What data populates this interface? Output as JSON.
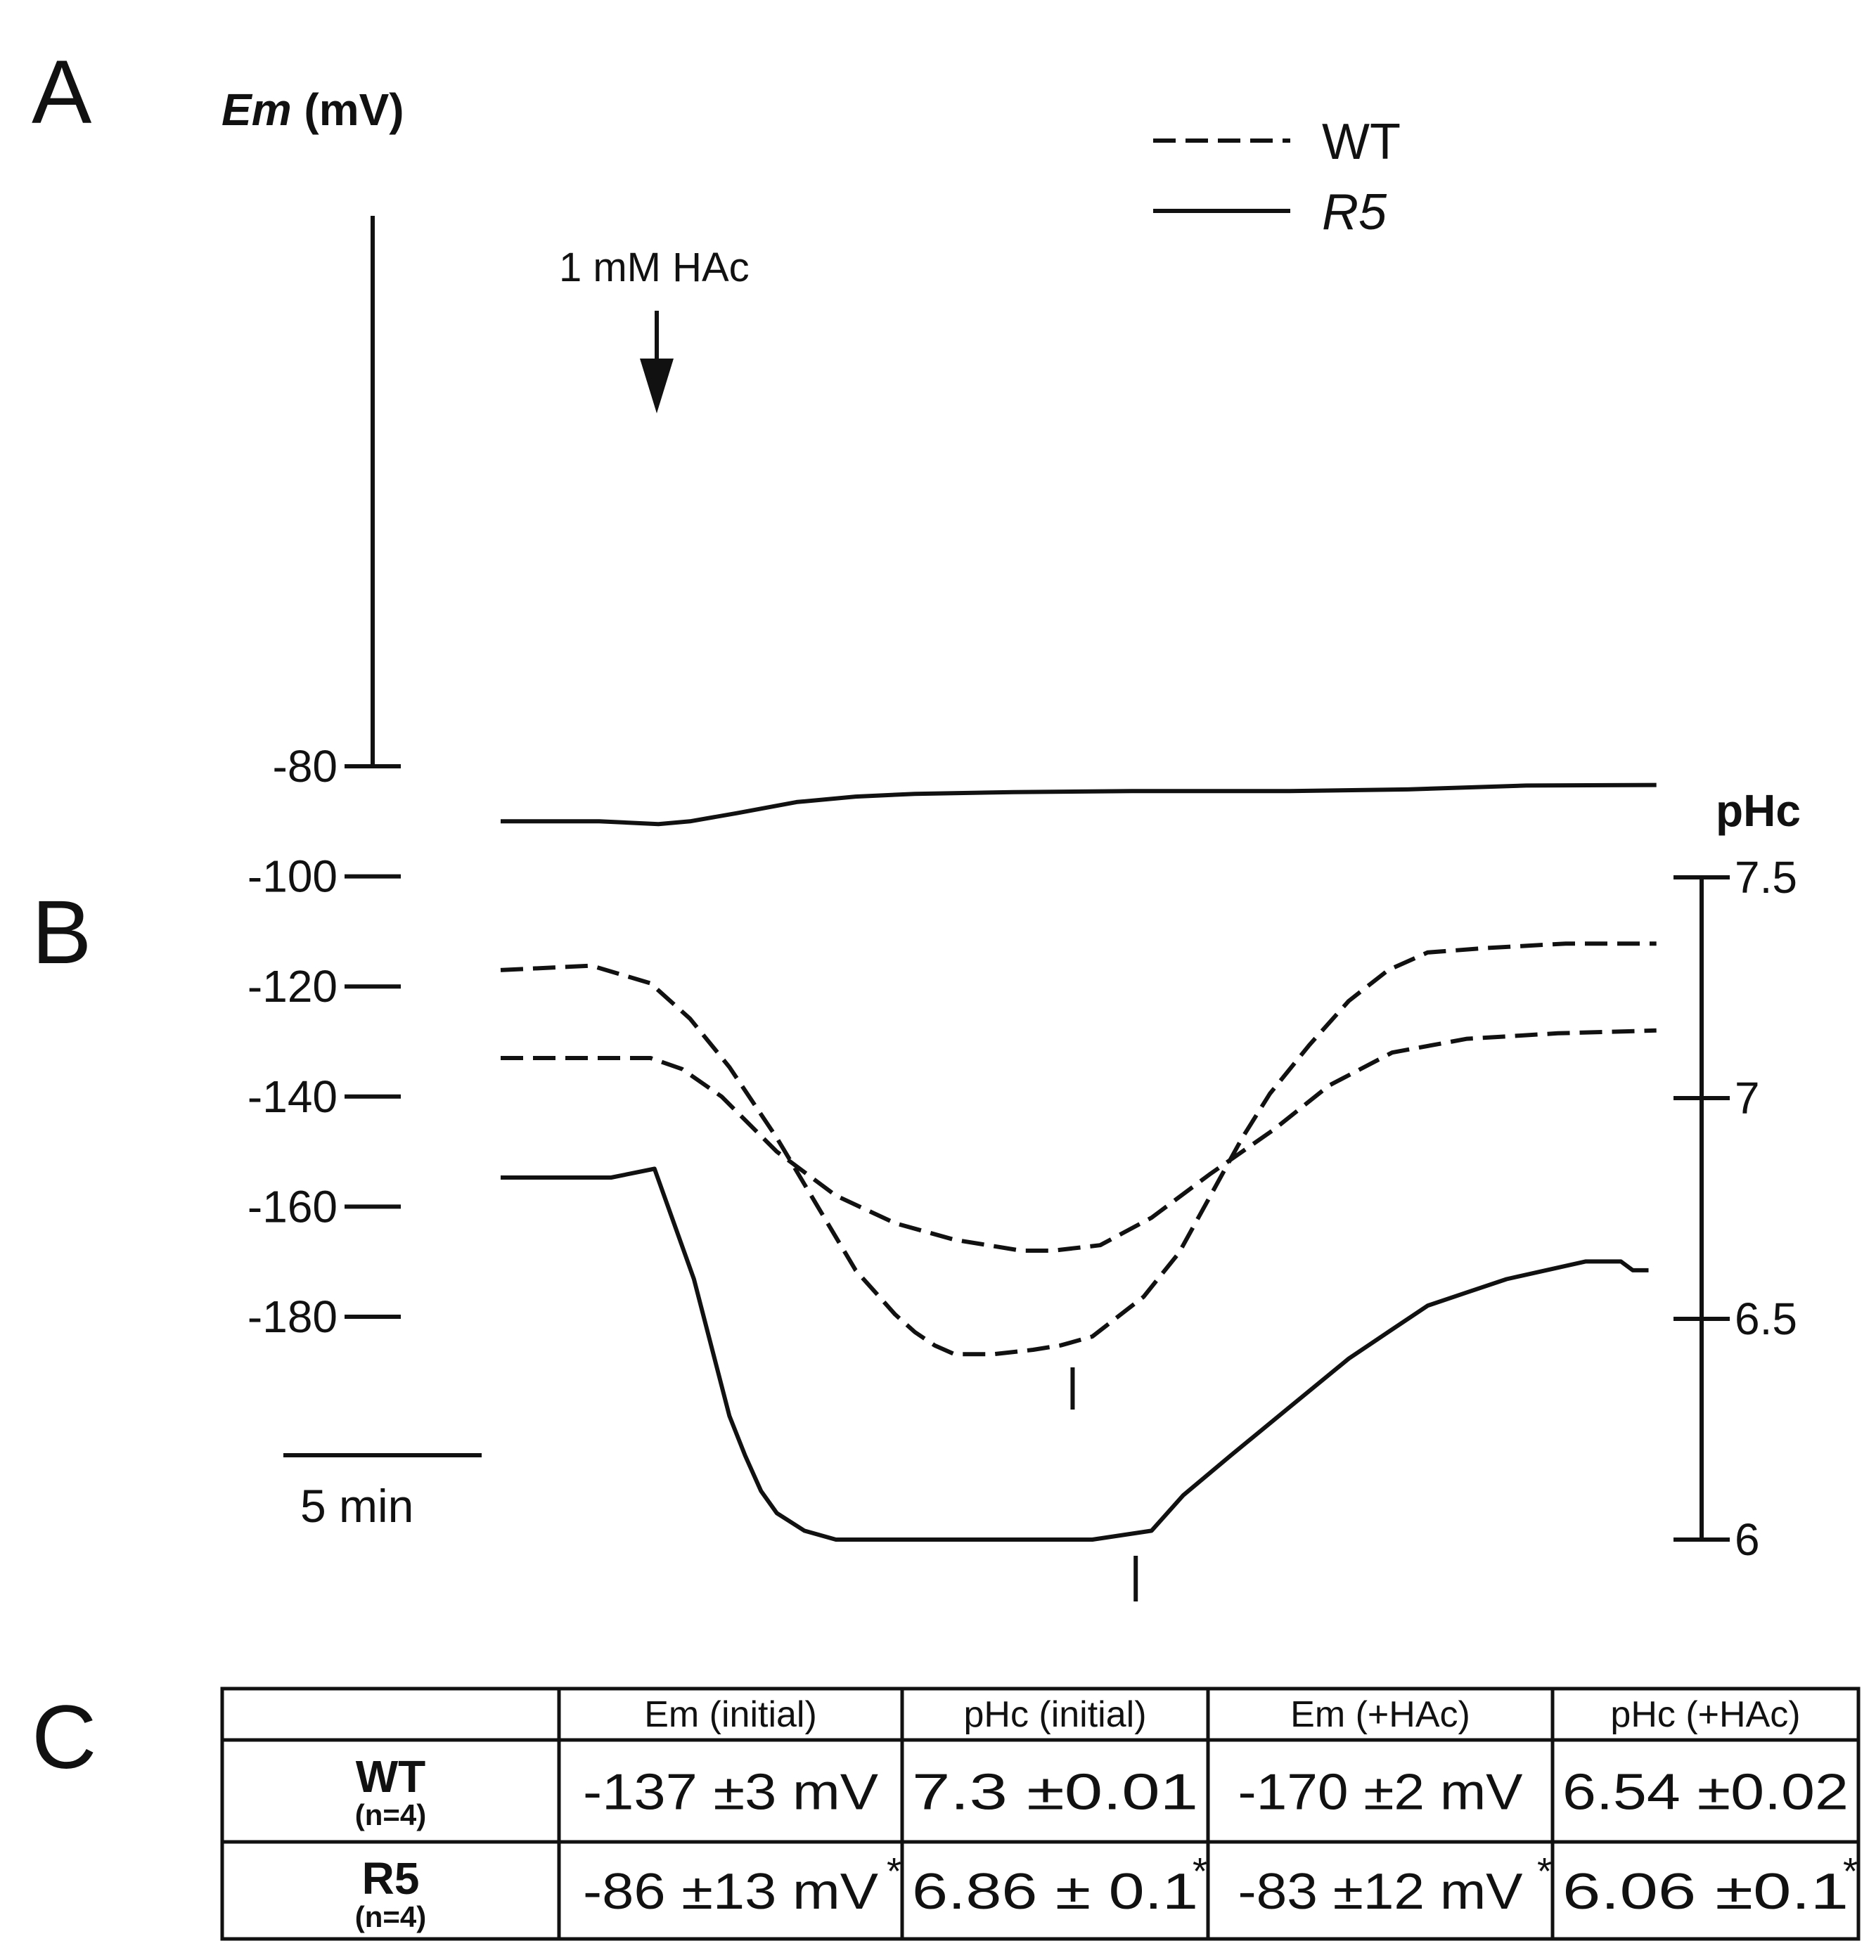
{
  "panels": {
    "a": "A",
    "b": "B",
    "c": "C"
  },
  "legend": {
    "wt": "WT",
    "r5": "R5"
  },
  "annotation": "1 mM HAc",
  "scale_bar": "5 min",
  "colors": {
    "line": "#111111",
    "background": "#ffffff"
  },
  "chart_data": [
    {
      "type": "line",
      "panel": "A",
      "ylabel_italic": "Em",
      "ylabel_unit": " (mV)",
      "ylim": [
        -80,
        -180
      ],
      "yticks": [
        "-180",
        "-160",
        "-140",
        "-120",
        "-100",
        "-80"
      ],
      "x_unit": "min",
      "series": [
        {
          "name": "WT",
          "style": "dashed",
          "x": [
            0,
            2.0,
            3.8,
            4.6,
            5.6,
            7.0,
            8.5,
            10.0,
            11.5,
            13.2,
            14.0,
            15.2,
            16.5,
            18.0,
            19.6,
            21.0,
            22.6,
            24.5,
            26.8,
            29.3
          ],
          "y": [
            -133,
            -133,
            -133,
            -135,
            -140,
            -150,
            -158,
            -163,
            -166,
            -168,
            -168,
            -167,
            -162,
            -154,
            -146,
            -138,
            -132,
            -129.5,
            -128.5,
            -128
          ]
        },
        {
          "name": "R5",
          "style": "solid",
          "x": [
            0,
            2.5,
            4.0,
            4.8,
            6.0,
            7.5,
            9.0,
            10.5,
            13.0,
            16.0,
            20.0,
            23.0,
            26.0,
            29.3
          ],
          "y": [
            -90,
            -90,
            -90.5,
            -90,
            -88.5,
            -86.5,
            -85.5,
            -85,
            -84.7,
            -84.5,
            -84.5,
            -84.2,
            -83.5,
            -83.4
          ]
        }
      ]
    },
    {
      "type": "line",
      "panel": "B",
      "ylabel": "pHc",
      "ylim": [
        6,
        7.5
      ],
      "yticks": [
        "7.5",
        "7",
        "6.5",
        "6"
      ],
      "x_unit": "min",
      "tick_marks_x": [
        14.5,
        16.1
      ],
      "series": [
        {
          "name": "WT",
          "style": "dashed",
          "x": [
            0,
            2.3,
            3.8,
            4.8,
            5.8,
            7.0,
            8.0,
            9.0,
            10.0,
            10.5,
            11.0,
            11.5,
            12.5,
            13.5,
            14.2,
            15.0,
            16.3,
            17.2,
            18.0,
            18.8,
            19.5,
            20.5,
            21.5,
            22.5,
            23.5,
            25.0,
            27.0,
            29.3
          ],
          "y": [
            7.29,
            7.3,
            7.26,
            7.18,
            7.07,
            6.91,
            6.76,
            6.61,
            6.51,
            6.47,
            6.44,
            6.42,
            6.42,
            6.43,
            6.44,
            6.46,
            6.55,
            6.65,
            6.78,
            6.91,
            7.01,
            7.12,
            7.22,
            7.29,
            7.33,
            7.34,
            7.35,
            7.35
          ]
        },
        {
          "name": "R5",
          "style": "solid",
          "x": [
            0,
            2.8,
            3.9,
            4.9,
            5.8,
            6.2,
            6.6,
            7.0,
            7.7,
            8.5,
            10.0,
            13.0,
            15.0,
            16.5,
            17.3,
            18.5,
            20.0,
            21.5,
            22.5,
            23.5,
            24.5,
            25.5,
            26.5,
            27.5,
            28.4,
            28.7,
            29.1
          ],
          "y": [
            6.82,
            6.82,
            6.84,
            6.59,
            6.28,
            6.19,
            6.11,
            6.06,
            6.02,
            6.0,
            6.0,
            6.0,
            6.0,
            6.02,
            6.1,
            6.19,
            6.3,
            6.41,
            6.47,
            6.53,
            6.56,
            6.59,
            6.61,
            6.63,
            6.63,
            6.61,
            6.61
          ]
        }
      ]
    },
    {
      "type": "table",
      "panel": "C",
      "columns": [
        "",
        "Em (initial)",
        "pHc (initial)",
        "Em (+HAc)",
        "pHc (+HAc)"
      ],
      "rows": [
        {
          "label": "WT",
          "sub": "(n=4)",
          "cells": [
            "-137 ±3 mV",
            "7.3  ±0.01",
            "-170 ±2 mV",
            "6.54 ±0.02"
          ],
          "stars": [
            false,
            false,
            false,
            false
          ]
        },
        {
          "label": "R5",
          "sub": "(n=4)",
          "cells": [
            "-86 ±13 mV",
            "6.86 ± 0.1",
            "-83  ±12 mV",
            "6.06 ±0.1"
          ],
          "stars": [
            true,
            true,
            true,
            true
          ]
        }
      ],
      "star": "*"
    }
  ]
}
